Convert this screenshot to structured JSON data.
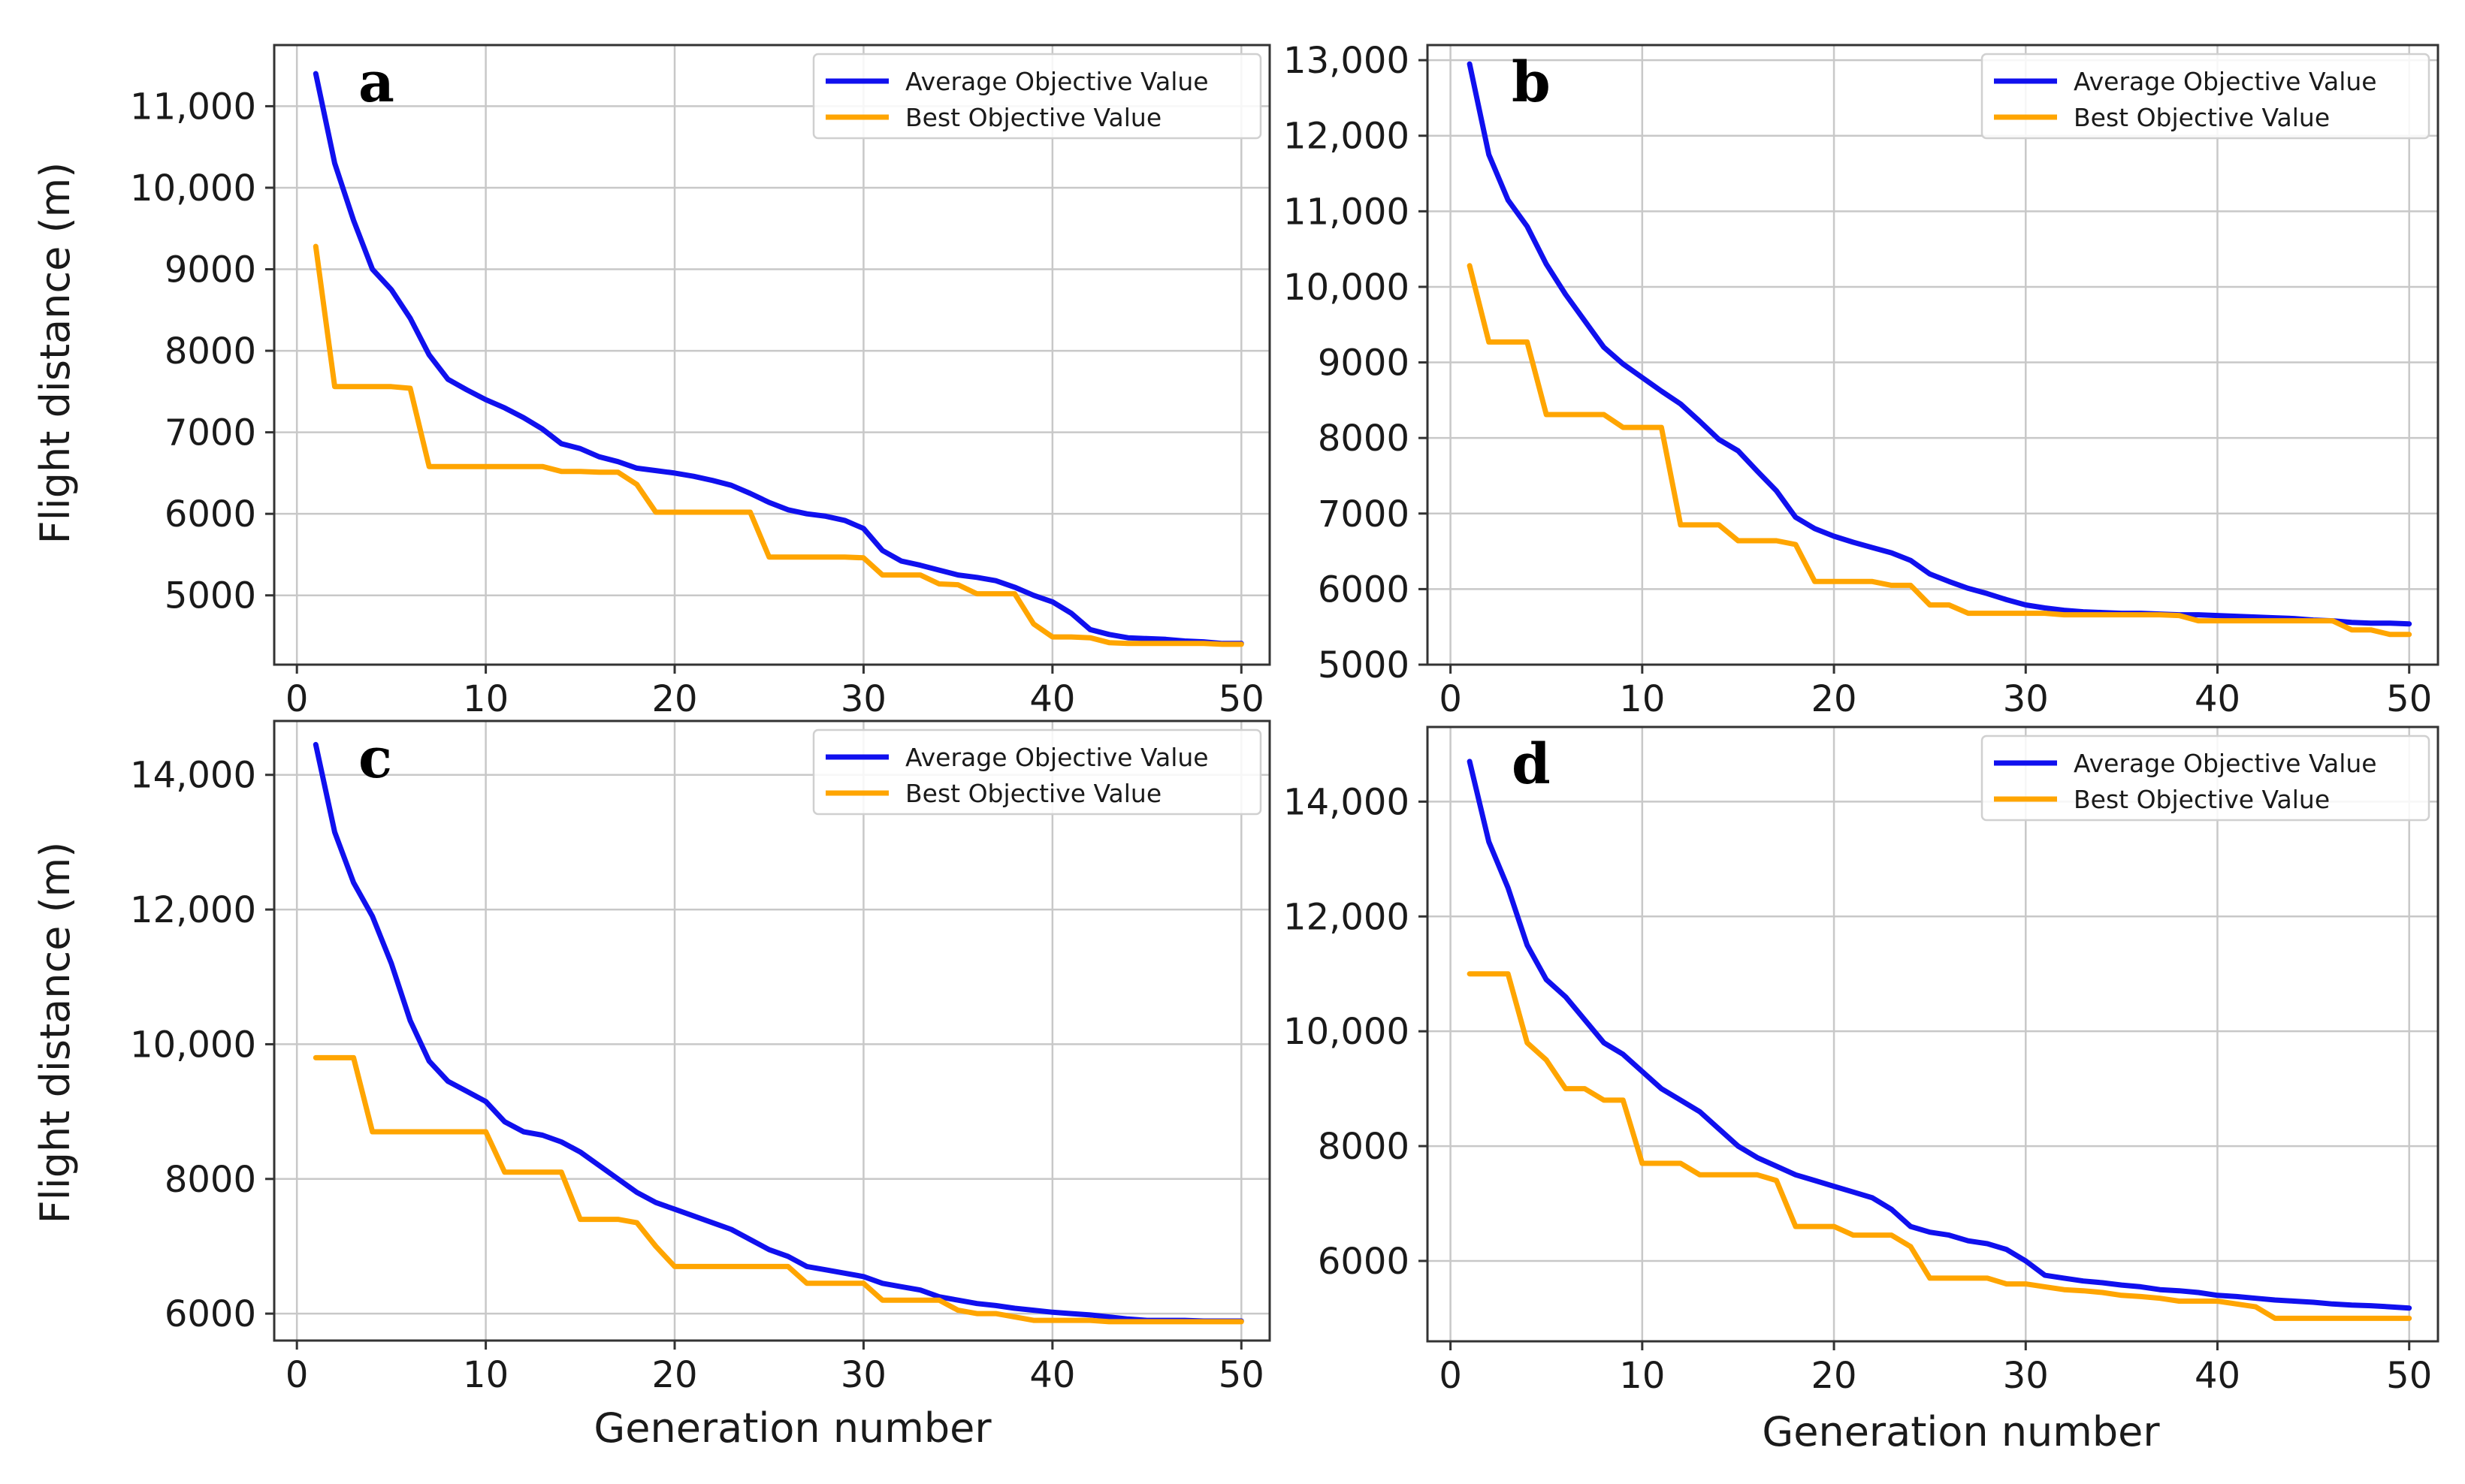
{
  "colors": {
    "average": "#1010ee",
    "best": "#ffa500"
  },
  "axis_labels": {
    "ylabel": "Flight distance (m)",
    "xlabel": "Generation number"
  },
  "chart_data": [
    {
      "type": "line",
      "panel_letter": "a",
      "xlim": [
        -1.2,
        51.5
      ],
      "ylim": [
        4150,
        11750
      ],
      "xticks": [
        0,
        10,
        20,
        30,
        40,
        50
      ],
      "xtick_labels": [
        "0",
        "10",
        "20",
        "30",
        "40",
        "50"
      ],
      "yticks": [
        5000,
        6000,
        7000,
        8000,
        9000,
        10000,
        11000
      ],
      "ytick_labels": [
        "5000",
        "6000",
        "7000",
        "8000",
        "9000",
        "10,000",
        "11,000"
      ],
      "legend_position": "top-right",
      "series": [
        {
          "name": "Average Objective Value",
          "color_key": "average",
          "x": [
            1,
            2,
            3,
            4,
            5,
            6,
            7,
            8,
            9,
            10,
            11,
            12,
            13,
            14,
            15,
            16,
            17,
            18,
            19,
            20,
            21,
            22,
            23,
            24,
            25,
            26,
            27,
            28,
            29,
            30,
            31,
            32,
            33,
            34,
            35,
            36,
            37,
            38,
            39,
            40,
            41,
            42,
            43,
            44,
            45,
            46,
            47,
            48,
            49,
            50
          ],
          "values": [
            11400,
            10300,
            9600,
            9000,
            8750,
            8400,
            7950,
            7650,
            7520,
            7400,
            7300,
            7180,
            7040,
            6860,
            6800,
            6700,
            6640,
            6560,
            6530,
            6500,
            6460,
            6410,
            6350,
            6250,
            6140,
            6050,
            6000,
            5970,
            5920,
            5820,
            5550,
            5420,
            5370,
            5310,
            5250,
            5220,
            5180,
            5100,
            5000,
            4920,
            4780,
            4580,
            4520,
            4480,
            4470,
            4460,
            4440,
            4430,
            4410,
            4410
          ]
        },
        {
          "name": "Best Objective Value",
          "color_key": "best",
          "x": [
            1,
            2,
            3,
            4,
            5,
            6,
            7,
            8,
            9,
            10,
            11,
            12,
            13,
            14,
            15,
            16,
            17,
            18,
            19,
            20,
            21,
            22,
            23,
            24,
            25,
            26,
            27,
            28,
            29,
            30,
            31,
            32,
            33,
            34,
            35,
            36,
            37,
            38,
            39,
            40,
            41,
            42,
            43,
            44,
            45,
            46,
            47,
            48,
            49,
            50
          ],
          "values": [
            9280,
            7560,
            7560,
            7560,
            7560,
            7540,
            6580,
            6580,
            6580,
            6580,
            6580,
            6580,
            6580,
            6520,
            6520,
            6510,
            6510,
            6360,
            6020,
            6020,
            6020,
            6020,
            6020,
            6020,
            5470,
            5470,
            5470,
            5470,
            5470,
            5460,
            5250,
            5250,
            5250,
            5140,
            5130,
            5020,
            5020,
            5020,
            4650,
            4490,
            4490,
            4480,
            4420,
            4410,
            4410,
            4410,
            4410,
            4410,
            4400,
            4400
          ]
        }
      ]
    },
    {
      "type": "line",
      "panel_letter": "b",
      "xlim": [
        -1.2,
        51.5
      ],
      "ylim": [
        5000,
        13200
      ],
      "xticks": [
        0,
        10,
        20,
        30,
        40,
        50
      ],
      "xtick_labels": [
        "0",
        "10",
        "20",
        "30",
        "40",
        "50"
      ],
      "yticks": [
        5000,
        6000,
        7000,
        8000,
        9000,
        10000,
        11000,
        12000,
        13000
      ],
      "ytick_labels": [
        "5000",
        "6000",
        "7000",
        "8000",
        "9000",
        "10,000",
        "11,000",
        "12,000",
        "13,000"
      ],
      "legend_position": "top-right",
      "series": [
        {
          "name": "Average Objective Value",
          "color_key": "average",
          "x": [
            1,
            2,
            3,
            4,
            5,
            6,
            7,
            8,
            9,
            10,
            11,
            12,
            13,
            14,
            15,
            16,
            17,
            18,
            19,
            20,
            21,
            22,
            23,
            24,
            25,
            26,
            27,
            28,
            29,
            30,
            31,
            32,
            33,
            34,
            35,
            36,
            37,
            38,
            39,
            40,
            41,
            42,
            43,
            44,
            45,
            46,
            47,
            48,
            49,
            50
          ],
          "values": [
            12950,
            11750,
            11150,
            10800,
            10300,
            9900,
            9550,
            9200,
            8980,
            8800,
            8620,
            8450,
            8220,
            7980,
            7830,
            7560,
            7300,
            6950,
            6800,
            6700,
            6620,
            6550,
            6480,
            6380,
            6200,
            6100,
            6010,
            5940,
            5860,
            5790,
            5750,
            5720,
            5700,
            5690,
            5680,
            5680,
            5670,
            5660,
            5660,
            5650,
            5640,
            5630,
            5620,
            5610,
            5590,
            5580,
            5560,
            5550,
            5550,
            5540
          ]
        },
        {
          "name": "Best Objective Value",
          "color_key": "best",
          "x": [
            1,
            2,
            3,
            4,
            5,
            6,
            7,
            8,
            9,
            10,
            11,
            12,
            13,
            14,
            15,
            16,
            17,
            18,
            19,
            20,
            21,
            22,
            23,
            24,
            25,
            26,
            27,
            28,
            29,
            30,
            31,
            32,
            33,
            34,
            35,
            36,
            37,
            38,
            39,
            40,
            41,
            42,
            43,
            44,
            45,
            46,
            47,
            48,
            49,
            50
          ],
          "values": [
            10280,
            9270,
            9270,
            9270,
            8310,
            8310,
            8310,
            8310,
            8140,
            8140,
            8140,
            6850,
            6850,
            6850,
            6640,
            6640,
            6640,
            6590,
            6100,
            6100,
            6100,
            6100,
            6050,
            6050,
            5790,
            5790,
            5680,
            5680,
            5680,
            5680,
            5680,
            5660,
            5660,
            5660,
            5660,
            5660,
            5660,
            5650,
            5580,
            5580,
            5580,
            5580,
            5580,
            5580,
            5580,
            5580,
            5460,
            5460,
            5400,
            5400
          ]
        }
      ]
    },
    {
      "type": "line",
      "panel_letter": "c",
      "xlim": [
        -1.2,
        51.5
      ],
      "ylim": [
        5600,
        14800
      ],
      "xticks": [
        0,
        10,
        20,
        30,
        40,
        50
      ],
      "xtick_labels": [
        "0",
        "10",
        "20",
        "30",
        "40",
        "50"
      ],
      "yticks": [
        6000,
        8000,
        10000,
        12000,
        14000
      ],
      "ytick_labels": [
        "6000",
        "8000",
        "10,000",
        "12,000",
        "14,000"
      ],
      "legend_position": "top-right",
      "series": [
        {
          "name": "Average Objective Value",
          "color_key": "average",
          "x": [
            1,
            2,
            3,
            4,
            5,
            6,
            7,
            8,
            9,
            10,
            11,
            12,
            13,
            14,
            15,
            16,
            17,
            18,
            19,
            20,
            21,
            22,
            23,
            24,
            25,
            26,
            27,
            28,
            29,
            30,
            31,
            32,
            33,
            34,
            35,
            36,
            37,
            38,
            39,
            40,
            41,
            42,
            43,
            44,
            45,
            46,
            47,
            48,
            49,
            50
          ],
          "values": [
            14450,
            13150,
            12400,
            11900,
            11200,
            10350,
            9750,
            9450,
            9300,
            9150,
            8850,
            8700,
            8650,
            8550,
            8400,
            8200,
            8000,
            7800,
            7650,
            7550,
            7450,
            7350,
            7250,
            7100,
            6950,
            6850,
            6700,
            6650,
            6600,
            6550,
            6450,
            6400,
            6350,
            6250,
            6200,
            6150,
            6120,
            6080,
            6050,
            6020,
            6000,
            5980,
            5950,
            5920,
            5900,
            5900,
            5900,
            5890,
            5890,
            5890
          ]
        },
        {
          "name": "Best Objective Value",
          "color_key": "best",
          "x": [
            1,
            2,
            3,
            4,
            5,
            6,
            7,
            8,
            9,
            10,
            11,
            12,
            13,
            14,
            15,
            16,
            17,
            18,
            19,
            20,
            21,
            22,
            23,
            24,
            25,
            26,
            27,
            28,
            29,
            30,
            31,
            32,
            33,
            34,
            35,
            36,
            37,
            38,
            39,
            40,
            41,
            42,
            43,
            44,
            45,
            46,
            47,
            48,
            49,
            50
          ],
          "values": [
            9800,
            9800,
            9800,
            8700,
            8700,
            8700,
            8700,
            8700,
            8700,
            8700,
            8100,
            8100,
            8100,
            8100,
            7400,
            7400,
            7400,
            7350,
            7000,
            6700,
            6700,
            6700,
            6700,
            6700,
            6700,
            6700,
            6450,
            6450,
            6450,
            6450,
            6200,
            6200,
            6200,
            6200,
            6050,
            6000,
            6000,
            5950,
            5900,
            5900,
            5900,
            5900,
            5880,
            5880,
            5880,
            5880,
            5880,
            5880,
            5880,
            5880
          ]
        }
      ]
    },
    {
      "type": "line",
      "panel_letter": "d",
      "xlim": [
        -1.2,
        51.5
      ],
      "ylim": [
        4600,
        15300
      ],
      "xticks": [
        0,
        10,
        20,
        30,
        40,
        50
      ],
      "xtick_labels": [
        "0",
        "10",
        "20",
        "30",
        "40",
        "50"
      ],
      "yticks": [
        6000,
        8000,
        10000,
        12000,
        14000
      ],
      "ytick_labels": [
        "6000",
        "8000",
        "10,000",
        "12,000",
        "14,000"
      ],
      "legend_position": "top-right",
      "series": [
        {
          "name": "Average Objective Value",
          "color_key": "average",
          "x": [
            1,
            2,
            3,
            4,
            5,
            6,
            7,
            8,
            9,
            10,
            11,
            12,
            13,
            14,
            15,
            16,
            17,
            18,
            19,
            20,
            21,
            22,
            23,
            24,
            25,
            26,
            27,
            28,
            29,
            30,
            31,
            32,
            33,
            34,
            35,
            36,
            37,
            38,
            39,
            40,
            41,
            42,
            43,
            44,
            45,
            46,
            47,
            48,
            49,
            50
          ],
          "values": [
            14700,
            13300,
            12500,
            11500,
            10900,
            10600,
            10200,
            9800,
            9600,
            9300,
            9000,
            8800,
            8600,
            8300,
            8000,
            7800,
            7650,
            7500,
            7400,
            7300,
            7200,
            7100,
            6900,
            6600,
            6500,
            6450,
            6350,
            6300,
            6200,
            6000,
            5750,
            5700,
            5650,
            5620,
            5580,
            5550,
            5500,
            5480,
            5450,
            5400,
            5380,
            5350,
            5320,
            5300,
            5280,
            5250,
            5230,
            5220,
            5200,
            5180
          ]
        },
        {
          "name": "Best Objective Value",
          "color_key": "best",
          "x": [
            1,
            2,
            3,
            4,
            5,
            6,
            7,
            8,
            9,
            10,
            11,
            12,
            13,
            14,
            15,
            16,
            17,
            18,
            19,
            20,
            21,
            22,
            23,
            24,
            25,
            26,
            27,
            28,
            29,
            30,
            31,
            32,
            33,
            34,
            35,
            36,
            37,
            38,
            39,
            40,
            41,
            42,
            43,
            44,
            45,
            46,
            47,
            48,
            49,
            50
          ],
          "values": [
            11000,
            11000,
            11000,
            9800,
            9500,
            9000,
            9000,
            8800,
            8800,
            7700,
            7700,
            7700,
            7500,
            7500,
            7500,
            7500,
            7400,
            6600,
            6600,
            6600,
            6450,
            6450,
            6450,
            6250,
            5700,
            5700,
            5700,
            5700,
            5600,
            5600,
            5550,
            5500,
            5480,
            5450,
            5400,
            5380,
            5350,
            5300,
            5300,
            5300,
            5250,
            5200,
            5000,
            5000,
            5000,
            5000,
            5000,
            5000,
            5000,
            5000
          ]
        }
      ]
    }
  ]
}
